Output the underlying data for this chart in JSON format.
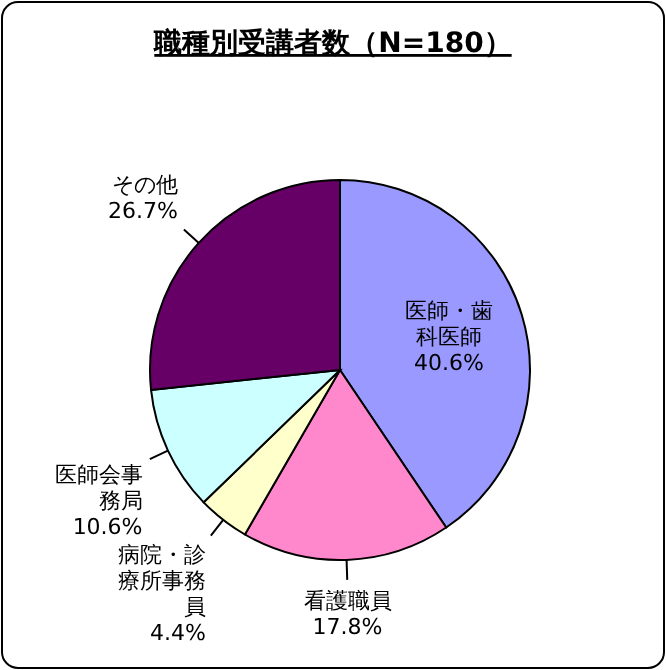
{
  "chart_data": {
    "type": "pie",
    "title": "職種別受講者数（N=180）",
    "categories": [
      "医師・歯科医師",
      "看護職員",
      "病院・診療所事務員",
      "医師会事務局",
      "その他"
    ],
    "values": [
      40.6,
      17.8,
      4.4,
      10.6,
      26.7
    ],
    "value_labels": [
      "40.6%",
      "17.8%",
      "4.4%",
      "10.6%",
      "26.7%"
    ],
    "colors": [
      "#9999ff",
      "#ff88cc",
      "#ffffcc",
      "#ccffff",
      "#660066"
    ]
  }
}
